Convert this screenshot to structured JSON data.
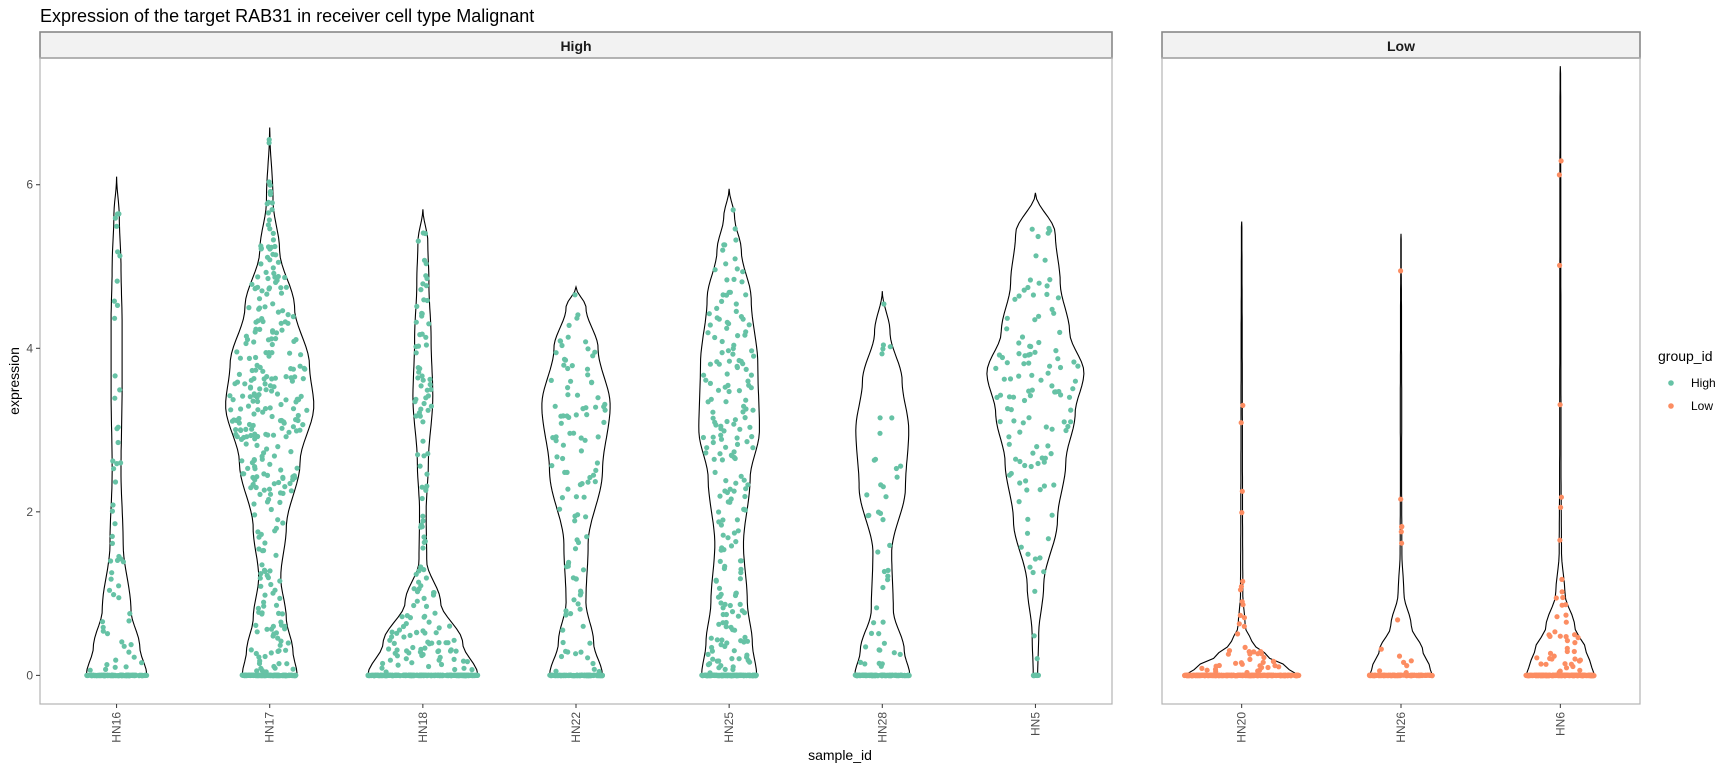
{
  "chart_data": {
    "type": "violin",
    "title": "Expression of the target RAB31 in receiver cell type Malignant",
    "xlabel": "sample_id",
    "ylabel": "expression",
    "ylim": [
      -0.35,
      7.55
    ],
    "yticks": [
      0,
      2,
      4,
      6
    ],
    "grid": false,
    "legend": {
      "title": "group_id",
      "placement": "right",
      "entries": [
        {
          "name": "High",
          "color": "#66c2a5"
        },
        {
          "name": "Low",
          "color": "#fc8d62"
        }
      ]
    },
    "panels": [
      {
        "strip": "High",
        "group": "High",
        "categories": [
          {
            "sample": "HN16",
            "max": 6.1,
            "n_points": 55,
            "n_zero": 120,
            "profile": [
              [
                0,
                0.55
              ],
              [
                0.35,
                0.42
              ],
              [
                0.8,
                0.26
              ],
              [
                1.6,
                0.12
              ],
              [
                2.5,
                0.08
              ],
              [
                3.5,
                0.1
              ],
              [
                4.3,
                0.1
              ],
              [
                5.0,
                0.08
              ],
              [
                5.6,
                0.05
              ],
              [
                6.1,
                0
              ]
            ]
          },
          {
            "sample": "HN17",
            "max": 6.7,
            "n_points": 320,
            "n_zero": 130,
            "profile": [
              [
                0,
                0.5
              ],
              [
                0.3,
                0.42
              ],
              [
                0.7,
                0.3
              ],
              [
                1.2,
                0.2
              ],
              [
                1.8,
                0.3
              ],
              [
                2.6,
                0.55
              ],
              [
                3.3,
                0.8
              ],
              [
                3.8,
                0.72
              ],
              [
                4.5,
                0.45
              ],
              [
                5.2,
                0.18
              ],
              [
                5.8,
                0.06
              ],
              [
                6.7,
                0
              ]
            ]
          },
          {
            "sample": "HN18",
            "max": 5.7,
            "n_points": 150,
            "n_zero": 250,
            "profile": [
              [
                0,
                1.0
              ],
              [
                0.4,
                0.72
              ],
              [
                0.9,
                0.32
              ],
              [
                1.4,
                0.07
              ],
              [
                2.0,
                0.06
              ],
              [
                2.6,
                0.1
              ],
              [
                3.4,
                0.18
              ],
              [
                4.1,
                0.15
              ],
              [
                4.8,
                0.11
              ],
              [
                5.3,
                0.09
              ],
              [
                5.7,
                0
              ]
            ]
          },
          {
            "sample": "HN22",
            "max": 4.75,
            "n_points": 110,
            "n_zero": 120,
            "profile": [
              [
                0,
                0.48
              ],
              [
                0.4,
                0.32
              ],
              [
                0.9,
                0.18
              ],
              [
                1.6,
                0.22
              ],
              [
                2.5,
                0.48
              ],
              [
                3.3,
                0.62
              ],
              [
                4.0,
                0.4
              ],
              [
                4.5,
                0.18
              ],
              [
                4.75,
                0
              ]
            ]
          },
          {
            "sample": "HN25",
            "max": 5.95,
            "n_points": 210,
            "n_zero": 150,
            "profile": [
              [
                0,
                0.5
              ],
              [
                0.4,
                0.42
              ],
              [
                0.9,
                0.33
              ],
              [
                1.6,
                0.26
              ],
              [
                2.4,
                0.38
              ],
              [
                3.0,
                0.55
              ],
              [
                3.8,
                0.52
              ],
              [
                4.6,
                0.4
              ],
              [
                5.2,
                0.22
              ],
              [
                5.6,
                0.1
              ],
              [
                5.95,
                0
              ]
            ]
          },
          {
            "sample": "HN28",
            "max": 4.7,
            "n_points": 45,
            "n_zero": 120,
            "profile": [
              [
                0,
                0.5
              ],
              [
                0.3,
                0.4
              ],
              [
                0.8,
                0.2
              ],
              [
                1.5,
                0.17
              ],
              [
                2.3,
                0.42
              ],
              [
                3.0,
                0.48
              ],
              [
                3.6,
                0.36
              ],
              [
                4.2,
                0.14
              ],
              [
                4.7,
                0
              ]
            ]
          },
          {
            "sample": "HN5",
            "max": 5.9,
            "n_points": 120,
            "n_zero": 15,
            "profile": [
              [
                0,
                0.04
              ],
              [
                0.5,
                0.06
              ],
              [
                1.1,
                0.15
              ],
              [
                1.9,
                0.4
              ],
              [
                2.6,
                0.55
              ],
              [
                3.2,
                0.72
              ],
              [
                3.7,
                0.88
              ],
              [
                4.2,
                0.62
              ],
              [
                4.8,
                0.45
              ],
              [
                5.4,
                0.36
              ],
              [
                5.9,
                0
              ]
            ]
          }
        ]
      },
      {
        "strip": "Low",
        "group": "Low",
        "categories": [
          {
            "sample": "HN20",
            "max": 5.55,
            "n_points": 45,
            "n_zero": 300,
            "profile": [
              [
                0,
                1.0
              ],
              [
                0.1,
                0.78
              ],
              [
                0.25,
                0.42
              ],
              [
                0.4,
                0.18
              ],
              [
                0.6,
                0.06
              ],
              [
                1.0,
                0.02
              ],
              [
                2.0,
                0.015
              ],
              [
                3.0,
                0.012
              ],
              [
                4.0,
                0.01
              ],
              [
                5.0,
                0.006
              ],
              [
                5.55,
                0
              ]
            ]
          },
          {
            "sample": "HN26",
            "max": 5.4,
            "n_points": 14,
            "n_zero": 120,
            "profile": [
              [
                0,
                0.55
              ],
              [
                0.1,
                0.5
              ],
              [
                0.3,
                0.38
              ],
              [
                0.6,
                0.18
              ],
              [
                1.0,
                0.05
              ],
              [
                1.5,
                0.015
              ],
              [
                2.5,
                0.01
              ],
              [
                3.2,
                0.012
              ],
              [
                4.5,
                0.008
              ],
              [
                5.4,
                0
              ]
            ]
          },
          {
            "sample": "HN6",
            "max": 7.45,
            "n_points": 45,
            "n_zero": 250,
            "profile": [
              [
                0,
                0.6
              ],
              [
                0.1,
                0.55
              ],
              [
                0.3,
                0.45
              ],
              [
                0.6,
                0.25
              ],
              [
                1.0,
                0.08
              ],
              [
                1.5,
                0.02
              ],
              [
                2.5,
                0.012
              ],
              [
                4.0,
                0.01
              ],
              [
                5.5,
                0.008
              ],
              [
                7.0,
                0.006
              ],
              [
                7.45,
                0
              ]
            ]
          }
        ]
      }
    ]
  }
}
